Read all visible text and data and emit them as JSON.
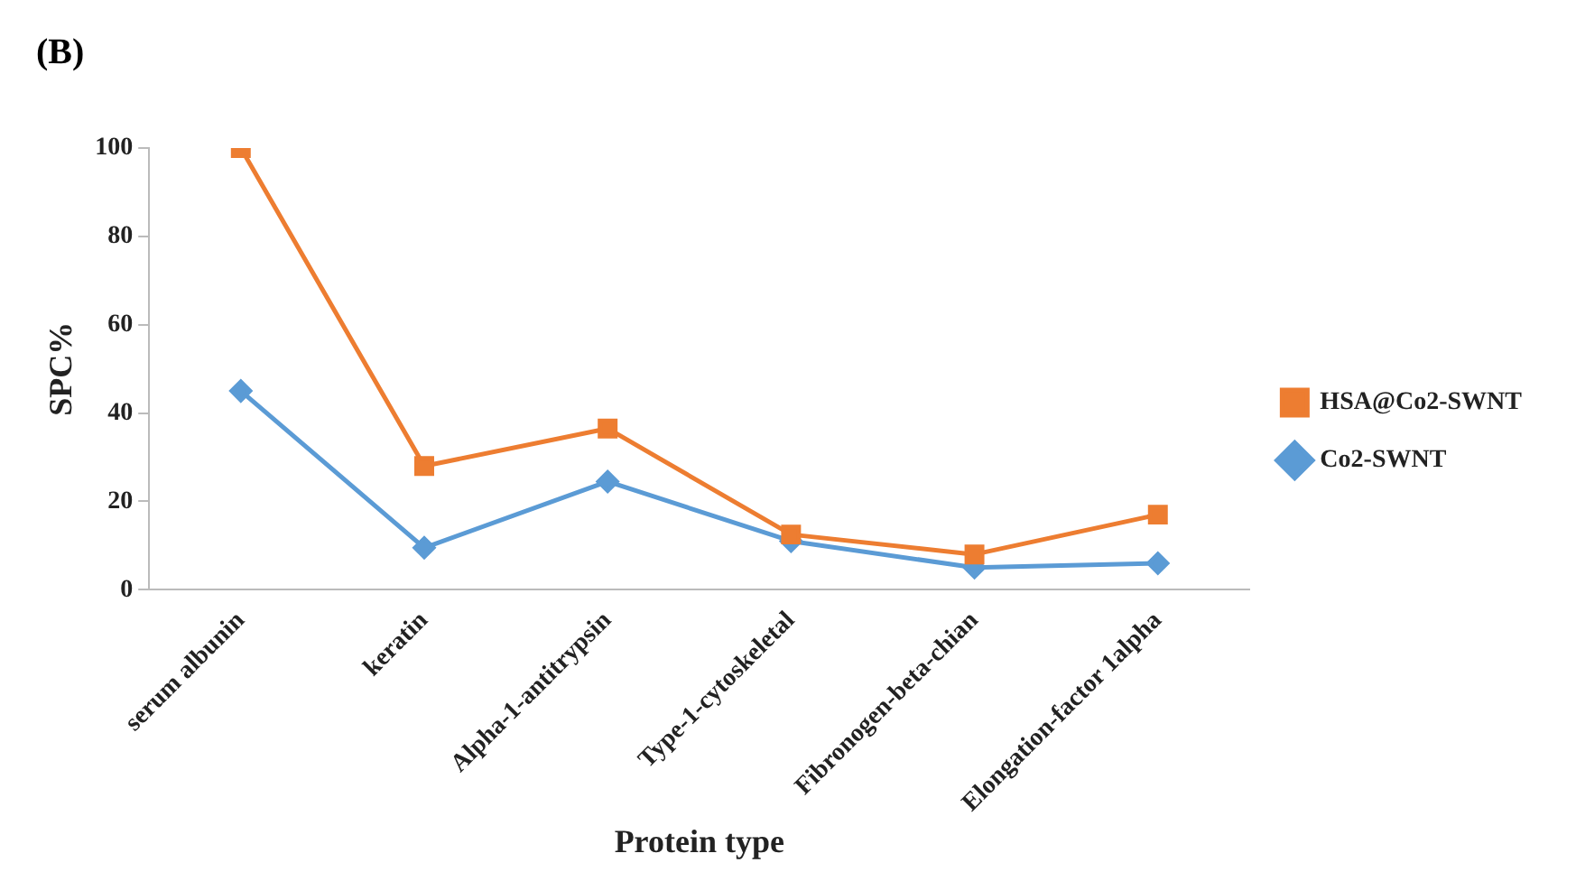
{
  "chart_data": {
    "type": "line",
    "title": "(B)",
    "xlabel": "Protein type",
    "ylabel": "SPC%",
    "categories": [
      "serum albunin",
      "keratin",
      "Alpha-1-antitrypsin",
      "Type-1-cytoskeletal",
      "Fibronogen-beta-chian",
      "Elongation-factor 1alpha"
    ],
    "series": [
      {
        "name": "HSA@Co2-SWNT",
        "color": "#ed7d31",
        "marker": "square",
        "values": [
          100,
          28,
          36.5,
          12.5,
          8,
          17
        ]
      },
      {
        "name": "Co2-SWNT",
        "color": "#5b9bd5",
        "marker": "diamond",
        "values": [
          45,
          9.5,
          24.5,
          11,
          5,
          6
        ]
      }
    ],
    "ylim": [
      0,
      100
    ],
    "yticks": [
      0,
      20,
      40,
      60,
      80,
      100
    ],
    "grid": false,
    "legend": "right"
  }
}
